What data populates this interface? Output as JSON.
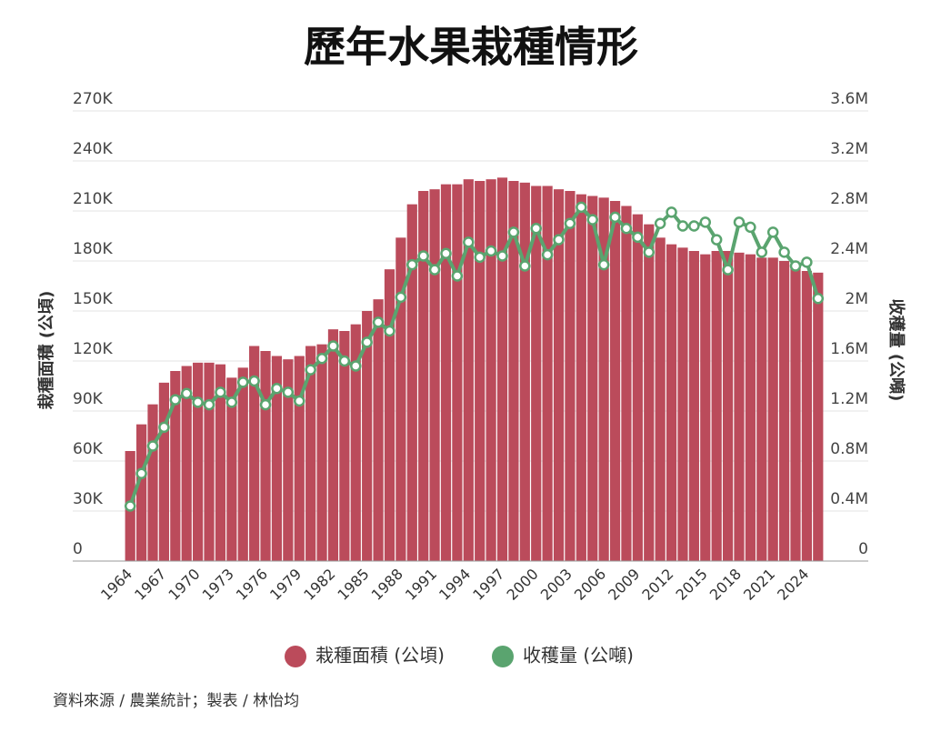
{
  "chart_data": {
    "type": "bar-line",
    "title": "歷年水果栽種情形",
    "ylabel": "栽種面積 (公頃)",
    "y2label": "收穫量 (公噸)",
    "source": "資料來源 / 農業統計；製表 / 林怡均",
    "categories": [
      "1964",
      null,
      null,
      "1967",
      null,
      null,
      "1970",
      null,
      null,
      "1973",
      null,
      null,
      "1976",
      null,
      null,
      "1979",
      null,
      null,
      "1982",
      null,
      null,
      "1985",
      null,
      null,
      "1988",
      null,
      null,
      "1991",
      null,
      null,
      "1994",
      null,
      null,
      "1997",
      null,
      null,
      "2000",
      null,
      null,
      "2003",
      null,
      null,
      "2006",
      null,
      null,
      "2009",
      null,
      null,
      "2012",
      null,
      null,
      "2015",
      null,
      null,
      "2018",
      null,
      null,
      "2021",
      null,
      null,
      "2024",
      null
    ],
    "series": [
      {
        "name": "栽種面積 (公頃)",
        "kind": "bar",
        "color": "#bb4b5b",
        "values": [
          66000,
          82000,
          94000,
          107000,
          114000,
          117000,
          119000,
          119000,
          118000,
          110000,
          116000,
          129000,
          126000,
          123000,
          121000,
          123000,
          129000,
          130000,
          139000,
          138000,
          142000,
          150000,
          157000,
          175000,
          194000,
          214000,
          222000,
          223000,
          226000,
          226000,
          229000,
          228000,
          229000,
          230000,
          228000,
          227000,
          225000,
          225000,
          223000,
          222000,
          220000,
          219000,
          218000,
          216000,
          213000,
          208000,
          202000,
          194000,
          190000,
          188000,
          186000,
          184000,
          186000,
          186000,
          185000,
          184000,
          182000,
          182000,
          180000,
          177000,
          174000,
          173000
        ]
      },
      {
        "name": "收穫量 (公噸)",
        "kind": "line",
        "axis": "y2",
        "color": "#5aa46f",
        "values": [
          440000,
          700000,
          920000,
          1070000,
          1290000,
          1340000,
          1270000,
          1250000,
          1350000,
          1270000,
          1430000,
          1440000,
          1250000,
          1380000,
          1350000,
          1280000,
          1530000,
          1620000,
          1720000,
          1600000,
          1560000,
          1750000,
          1910000,
          1840000,
          2110000,
          2370000,
          2440000,
          2330000,
          2460000,
          2280000,
          2550000,
          2430000,
          2480000,
          2440000,
          2630000,
          2360000,
          2660000,
          2450000,
          2570000,
          2700000,
          2830000,
          2730000,
          2370000,
          2750000,
          2660000,
          2590000,
          2470000,
          2700000,
          2790000,
          2680000,
          2680000,
          2710000,
          2570000,
          2330000,
          2710000,
          2670000,
          2470000,
          2630000,
          2470000,
          2360000,
          2390000,
          2100000
        ]
      }
    ],
    "ylim": [
      0,
      270000
    ],
    "yticks": [
      0,
      {
        "value": 30000,
        "label": "30K"
      },
      {
        "value": 60000,
        "label": "60K"
      },
      {
        "value": 90000,
        "label": "90K"
      },
      {
        "value": 120000,
        "label": "120K"
      },
      {
        "value": 150000,
        "label": "150K"
      },
      {
        "value": 180000,
        "label": "180K"
      },
      {
        "value": 210000,
        "label": "210K"
      },
      {
        "value": 240000,
        "label": "240K"
      },
      {
        "value": 270000,
        "label": "270K"
      }
    ],
    "y2lim": [
      0,
      3600000
    ],
    "y2ticks": [
      0,
      {
        "value": 400000,
        "label": "0.4M"
      },
      {
        "value": 800000,
        "label": "0.8M"
      },
      {
        "value": 1200000,
        "label": "1.2M"
      },
      {
        "value": 1600000,
        "label": "1.6M"
      },
      {
        "value": 2000000,
        "label": "2M"
      },
      {
        "value": 2400000,
        "label": "2.4M"
      },
      {
        "value": 2800000,
        "label": "2.8M"
      },
      {
        "value": 3200000,
        "label": "3.2M"
      },
      {
        "value": 3600000,
        "label": "3.6M"
      }
    ],
    "grid": true
  }
}
